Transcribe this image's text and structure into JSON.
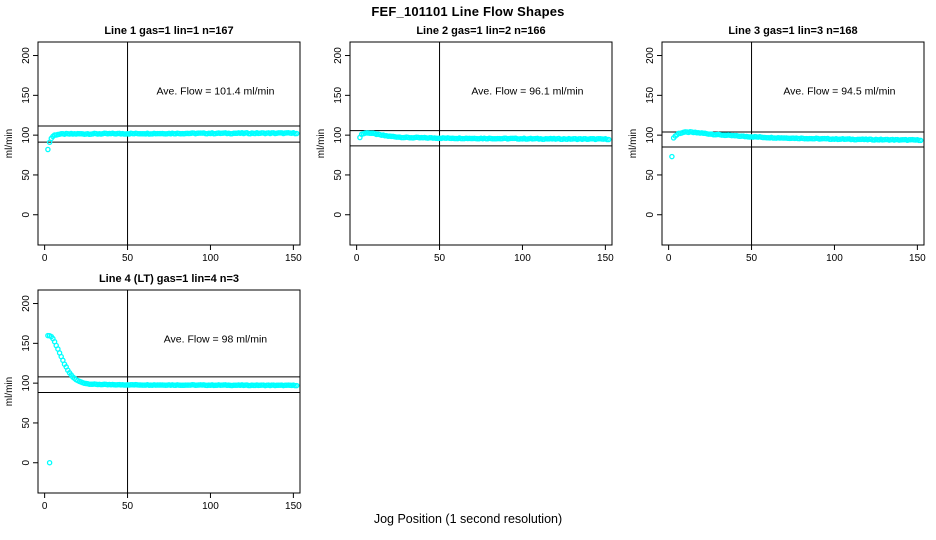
{
  "page": {
    "title": "FEF_101101  Line Flow Shapes",
    "outer_xlabel": "Jog Position (1 second resolution)"
  },
  "style": {
    "point_color": "#00FFFF",
    "axis_color": "#000000",
    "background": "#ffffff"
  },
  "chart_data": [
    {
      "type": "scatter",
      "title": "Line 1 gas=1 lin=1 n=167",
      "annotation": "Ave. Flow =  101.4  ml/min",
      "ave_flow_ml_min": 101.4,
      "n": 167,
      "ylabel": "ml/min",
      "xlim": [
        -4,
        154
      ],
      "ylim": [
        -38,
        217
      ],
      "x_ticks": [
        0,
        50,
        100,
        150
      ],
      "y_ticks": [
        0,
        50,
        100,
        150,
        200
      ],
      "vline_x": 50,
      "hlines_y": [
        111.5,
        91.3
      ],
      "annotation_pos": [
        103,
        151
      ],
      "outliers": [
        [
          2,
          82
        ]
      ],
      "profile": [
        [
          3,
          91
        ],
        [
          4,
          96
        ],
        [
          5,
          98.5
        ],
        [
          6,
          100
        ],
        [
          8,
          101
        ],
        [
          12,
          101.5
        ],
        [
          30,
          101.7
        ],
        [
          60,
          102
        ],
        [
          100,
          102.3
        ],
        [
          152,
          102.5
        ]
      ],
      "x_start": 3,
      "x_end": 152,
      "jitter": 0.55
    },
    {
      "type": "scatter",
      "title": "Line 2 gas=1 lin=2 n=166",
      "annotation": "Ave. Flow =  96.1  ml/min",
      "ave_flow_ml_min": 96.1,
      "n": 166,
      "ylabel": "ml/min",
      "xlim": [
        -4,
        154
      ],
      "ylim": [
        -38,
        217
      ],
      "x_ticks": [
        0,
        50,
        100,
        150
      ],
      "y_ticks": [
        0,
        50,
        100,
        150,
        200
      ],
      "vline_x": 50,
      "hlines_y": [
        105.7,
        86.5
      ],
      "annotation_pos": [
        103,
        151
      ],
      "outliers": [],
      "profile": [
        [
          2,
          97.5
        ],
        [
          3,
          101
        ],
        [
          5,
          102.5
        ],
        [
          7,
          103
        ],
        [
          10,
          102
        ],
        [
          15,
          100
        ],
        [
          20,
          98.5
        ],
        [
          30,
          97
        ],
        [
          50,
          96.3
        ],
        [
          80,
          95.8
        ],
        [
          120,
          95.3
        ],
        [
          152,
          95
        ]
      ],
      "x_start": 2,
      "x_end": 152,
      "jitter": 0.5
    },
    {
      "type": "scatter",
      "title": "Line 3 gas=1 lin=3 n=168",
      "annotation": "Ave. Flow =  94.5  ml/min",
      "ave_flow_ml_min": 94.5,
      "n": 168,
      "ylabel": "ml/min",
      "xlim": [
        -4,
        154
      ],
      "ylim": [
        -38,
        217
      ],
      "x_ticks": [
        0,
        50,
        100,
        150
      ],
      "y_ticks": [
        0,
        50,
        100,
        150,
        200
      ],
      "vline_x": 50,
      "hlines_y": [
        104.0,
        85.1
      ],
      "annotation_pos": [
        103,
        151
      ],
      "outliers": [
        [
          2,
          73
        ]
      ],
      "profile": [
        [
          3,
          96.5
        ],
        [
          4,
          99
        ],
        [
          6,
          102
        ],
        [
          9,
          103.5
        ],
        [
          13,
          103.8
        ],
        [
          20,
          102.5
        ],
        [
          30,
          100.5
        ],
        [
          45,
          98.5
        ],
        [
          60,
          97
        ],
        [
          90,
          95.5
        ],
        [
          120,
          94.5
        ],
        [
          152,
          93.8
        ]
      ],
      "x_start": 3,
      "x_end": 152,
      "jitter": 0.5
    },
    {
      "type": "scatter",
      "title": "Line 4 (LT) gas=1 lin=4 n=3",
      "annotation": "Ave. Flow =  98  ml/min",
      "ave_flow_ml_min": 98,
      "n": 3,
      "ylabel": "ml/min",
      "xlim": [
        -4,
        154
      ],
      "ylim": [
        -38,
        217
      ],
      "x_ticks": [
        0,
        50,
        100,
        150
      ],
      "y_ticks": [
        0,
        50,
        100,
        150,
        200
      ],
      "vline_x": 50,
      "hlines_y": [
        107.8,
        88.2
      ],
      "annotation_pos": [
        103,
        151
      ],
      "outliers": [
        [
          3,
          0
        ]
      ],
      "profile": [
        [
          2,
          160
        ],
        [
          3,
          159.5
        ],
        [
          4,
          158.5
        ],
        [
          5,
          156
        ],
        [
          6,
          152
        ],
        [
          7,
          147.5
        ],
        [
          8,
          143
        ],
        [
          9,
          138
        ],
        [
          10,
          133
        ],
        [
          11,
          128.5
        ],
        [
          12,
          124
        ],
        [
          13,
          120
        ],
        [
          14,
          116
        ],
        [
          15,
          113
        ],
        [
          16,
          110
        ],
        [
          17,
          107.8
        ],
        [
          18,
          106
        ],
        [
          19,
          104.4
        ],
        [
          20,
          103
        ],
        [
          22,
          101.3
        ],
        [
          24,
          100
        ],
        [
          27,
          99
        ],
        [
          30,
          98.6
        ],
        [
          40,
          98
        ],
        [
          60,
          97.8
        ],
        [
          100,
          97.5
        ],
        [
          152,
          97.2
        ]
      ],
      "x_start": 2,
      "x_end": 152,
      "jitter": 0.35
    }
  ]
}
